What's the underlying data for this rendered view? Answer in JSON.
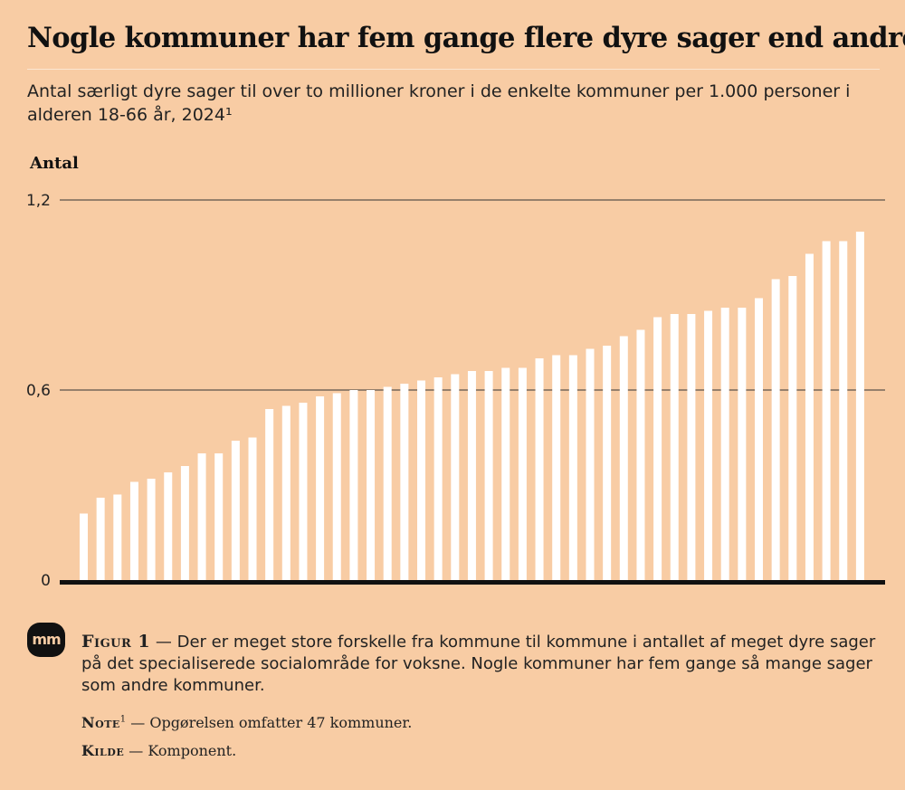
{
  "header": {
    "title": "Nogle kommuner har fem gange flere dyre sager end andre",
    "subtitle": "Antal særligt dyre sager til over to millioner kroner i de enkelte kommuner per 1.000 personer i alderen 18-66 år, 2024¹"
  },
  "chart_data": {
    "type": "bar",
    "ylabel": "Antal",
    "ylim": [
      0,
      1.2
    ],
    "yticks": [
      {
        "value": 0,
        "label": "0"
      },
      {
        "value": 0.6,
        "label": "0,6"
      },
      {
        "value": 1.2,
        "label": "1,2"
      }
    ],
    "grid": true,
    "bar_color": "#ffffff",
    "values": [
      0.21,
      0.26,
      0.27,
      0.31,
      0.32,
      0.34,
      0.36,
      0.4,
      0.4,
      0.44,
      0.45,
      0.54,
      0.55,
      0.56,
      0.58,
      0.59,
      0.6,
      0.6,
      0.61,
      0.62,
      0.63,
      0.64,
      0.65,
      0.66,
      0.66,
      0.67,
      0.67,
      0.7,
      0.71,
      0.71,
      0.73,
      0.74,
      0.77,
      0.79,
      0.83,
      0.84,
      0.84,
      0.85,
      0.86,
      0.86,
      0.89,
      0.95,
      0.96,
      1.03,
      1.07,
      1.07,
      1.1
    ]
  },
  "logo": {
    "text": "mm"
  },
  "caption": {
    "lead": "Figur 1",
    "sep": " — ",
    "text": "Der er meget store forskelle fra kommune til kommune i antallet af meget dyre sager på det specialiserede socialområde for voksne. Nogle kommuner har fem gange så mange sager som andre kommuner."
  },
  "note": {
    "lead": "Note",
    "sup": "1",
    "sep": " — ",
    "text": "Opgørelsen omfatter 47 kommuner."
  },
  "source": {
    "lead": "Kilde",
    "sep": " — ",
    "text": "Komponent."
  },
  "colors": {
    "background": "#f8cca4",
    "bars": "#ffffff",
    "axis": "#111111",
    "gridline": "#333333"
  }
}
